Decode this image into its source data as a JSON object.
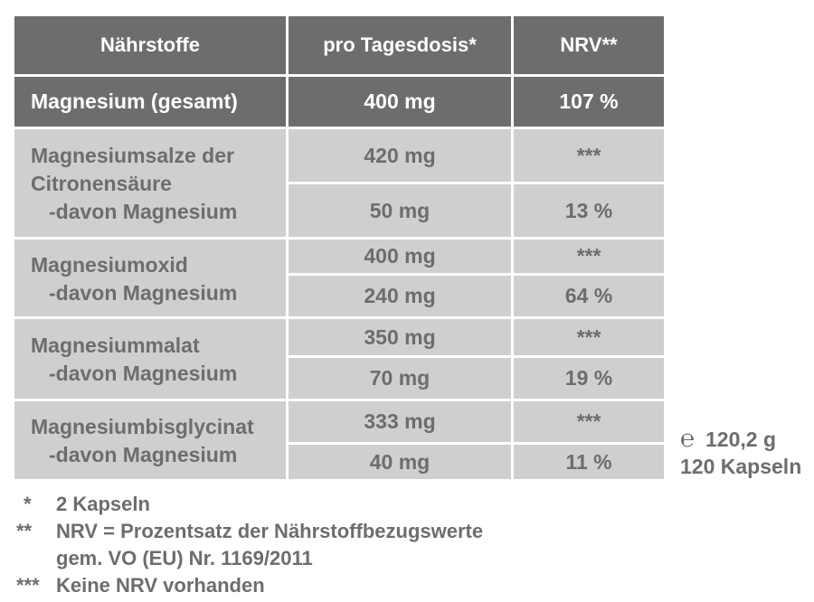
{
  "table": {
    "headers": {
      "nutrients": "Nährstoffe",
      "daily_dose": "pro Tagesdosis*",
      "nrv": "NRV**"
    },
    "total": {
      "name": "Magnesium (gesamt)",
      "dose": "400 mg",
      "nrv": "107 %"
    },
    "groups": [
      {
        "name_lines": [
          "Magnesiumsalze der",
          "Citronensäure"
        ],
        "sub_label": "-davon Magnesium",
        "dose": "420 mg",
        "nrv": "***",
        "sub_dose": "50 mg",
        "sub_nrv": "13 %"
      },
      {
        "name_lines": [
          "Magnesiumoxid"
        ],
        "sub_label": "-davon Magnesium",
        "dose": "400 mg",
        "nrv": "***",
        "sub_dose": "240 mg",
        "sub_nrv": "64 %"
      },
      {
        "name_lines": [
          "Magnesiummalat"
        ],
        "sub_label": "-davon Magnesium",
        "dose": "350 mg",
        "nrv": "***",
        "sub_dose": "70 mg",
        "sub_nrv": "19 %"
      },
      {
        "name_lines": [
          "Magnesiumbisglycinat"
        ],
        "sub_label": "-davon Magnesium",
        "dose": "333 mg",
        "nrv": "***",
        "sub_dose": "40 mg",
        "sub_nrv": "11 %"
      }
    ]
  },
  "package": {
    "estimated_sign": "℮",
    "net_weight": "120,2 g",
    "count": "120 Kapseln"
  },
  "footnotes": [
    {
      "mark": "*",
      "lines": [
        "2 Kapseln"
      ]
    },
    {
      "mark": "**",
      "lines": [
        "NRV = Prozentsatz der Nährstoffbezugswerte",
        "gem. VO (EU) Nr. 1169/2011"
      ]
    },
    {
      "mark": "***",
      "lines": [
        "Keine NRV vorhanden"
      ]
    }
  ]
}
